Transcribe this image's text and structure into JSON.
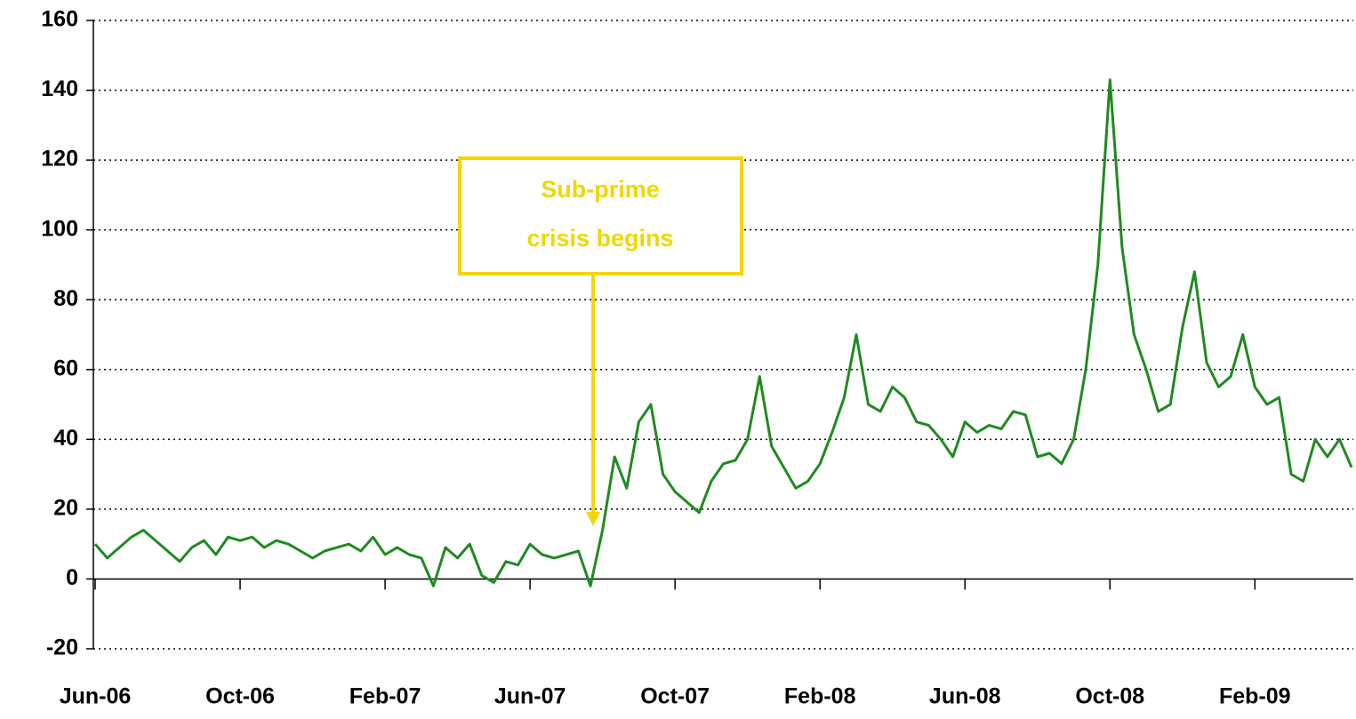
{
  "chart_data": {
    "type": "line",
    "categories": [
      "Jun-06",
      null,
      null,
      null,
      null,
      null,
      null,
      null,
      null,
      null,
      null,
      null,
      "Oct-06",
      null,
      null,
      null,
      null,
      null,
      null,
      null,
      null,
      null,
      null,
      null,
      "Feb-07",
      null,
      null,
      null,
      null,
      null,
      null,
      null,
      null,
      null,
      null,
      null,
      "Jun-07",
      null,
      null,
      null,
      null,
      null,
      null,
      null,
      null,
      null,
      null,
      null,
      "Oct-07",
      null,
      null,
      null,
      null,
      null,
      null,
      null,
      null,
      null,
      null,
      null,
      "Feb-08",
      null,
      null,
      null,
      null,
      null,
      null,
      null,
      null,
      null,
      null,
      null,
      "Jun-08",
      null,
      null,
      null,
      null,
      null,
      null,
      null,
      null,
      null,
      null,
      null,
      "Oct-08",
      null,
      null,
      null,
      null,
      null,
      null,
      null,
      null,
      null,
      null,
      null,
      "Feb-09",
      null,
      null,
      null,
      null,
      null,
      null,
      null,
      null
    ],
    "series": [
      {
        "color": "#1f8a1f",
        "values": [
          10,
          6,
          9,
          12,
          14,
          11,
          8,
          5,
          9,
          11,
          7,
          12,
          11,
          12,
          9,
          11,
          10,
          8,
          6,
          8,
          9,
          10,
          8,
          12,
          7,
          9,
          7,
          6,
          -2,
          9,
          6,
          10,
          1,
          -1,
          5,
          4,
          10,
          7,
          6,
          7,
          8,
          -2,
          14,
          35,
          26,
          45,
          50,
          30,
          25,
          22,
          19,
          28,
          33,
          34,
          40,
          58,
          38,
          32,
          26,
          28,
          33,
          42,
          52,
          70,
          50,
          48,
          55,
          52,
          45,
          44,
          40,
          35,
          45,
          42,
          44,
          43,
          48,
          47,
          35,
          36,
          33,
          40,
          60,
          90,
          143,
          95,
          70,
          60,
          48,
          50,
          72,
          88,
          62,
          55,
          58,
          70,
          55,
          50,
          52,
          30,
          28,
          40,
          35,
          40,
          32
        ]
      }
    ],
    "ylim": [
      -20,
      160
    ],
    "yticks": [
      -20,
      0,
      20,
      40,
      60,
      80,
      100,
      120,
      140,
      160
    ],
    "grid": true,
    "annotation": [
      "Sub-prime",
      "crisis begins"
    ]
  }
}
